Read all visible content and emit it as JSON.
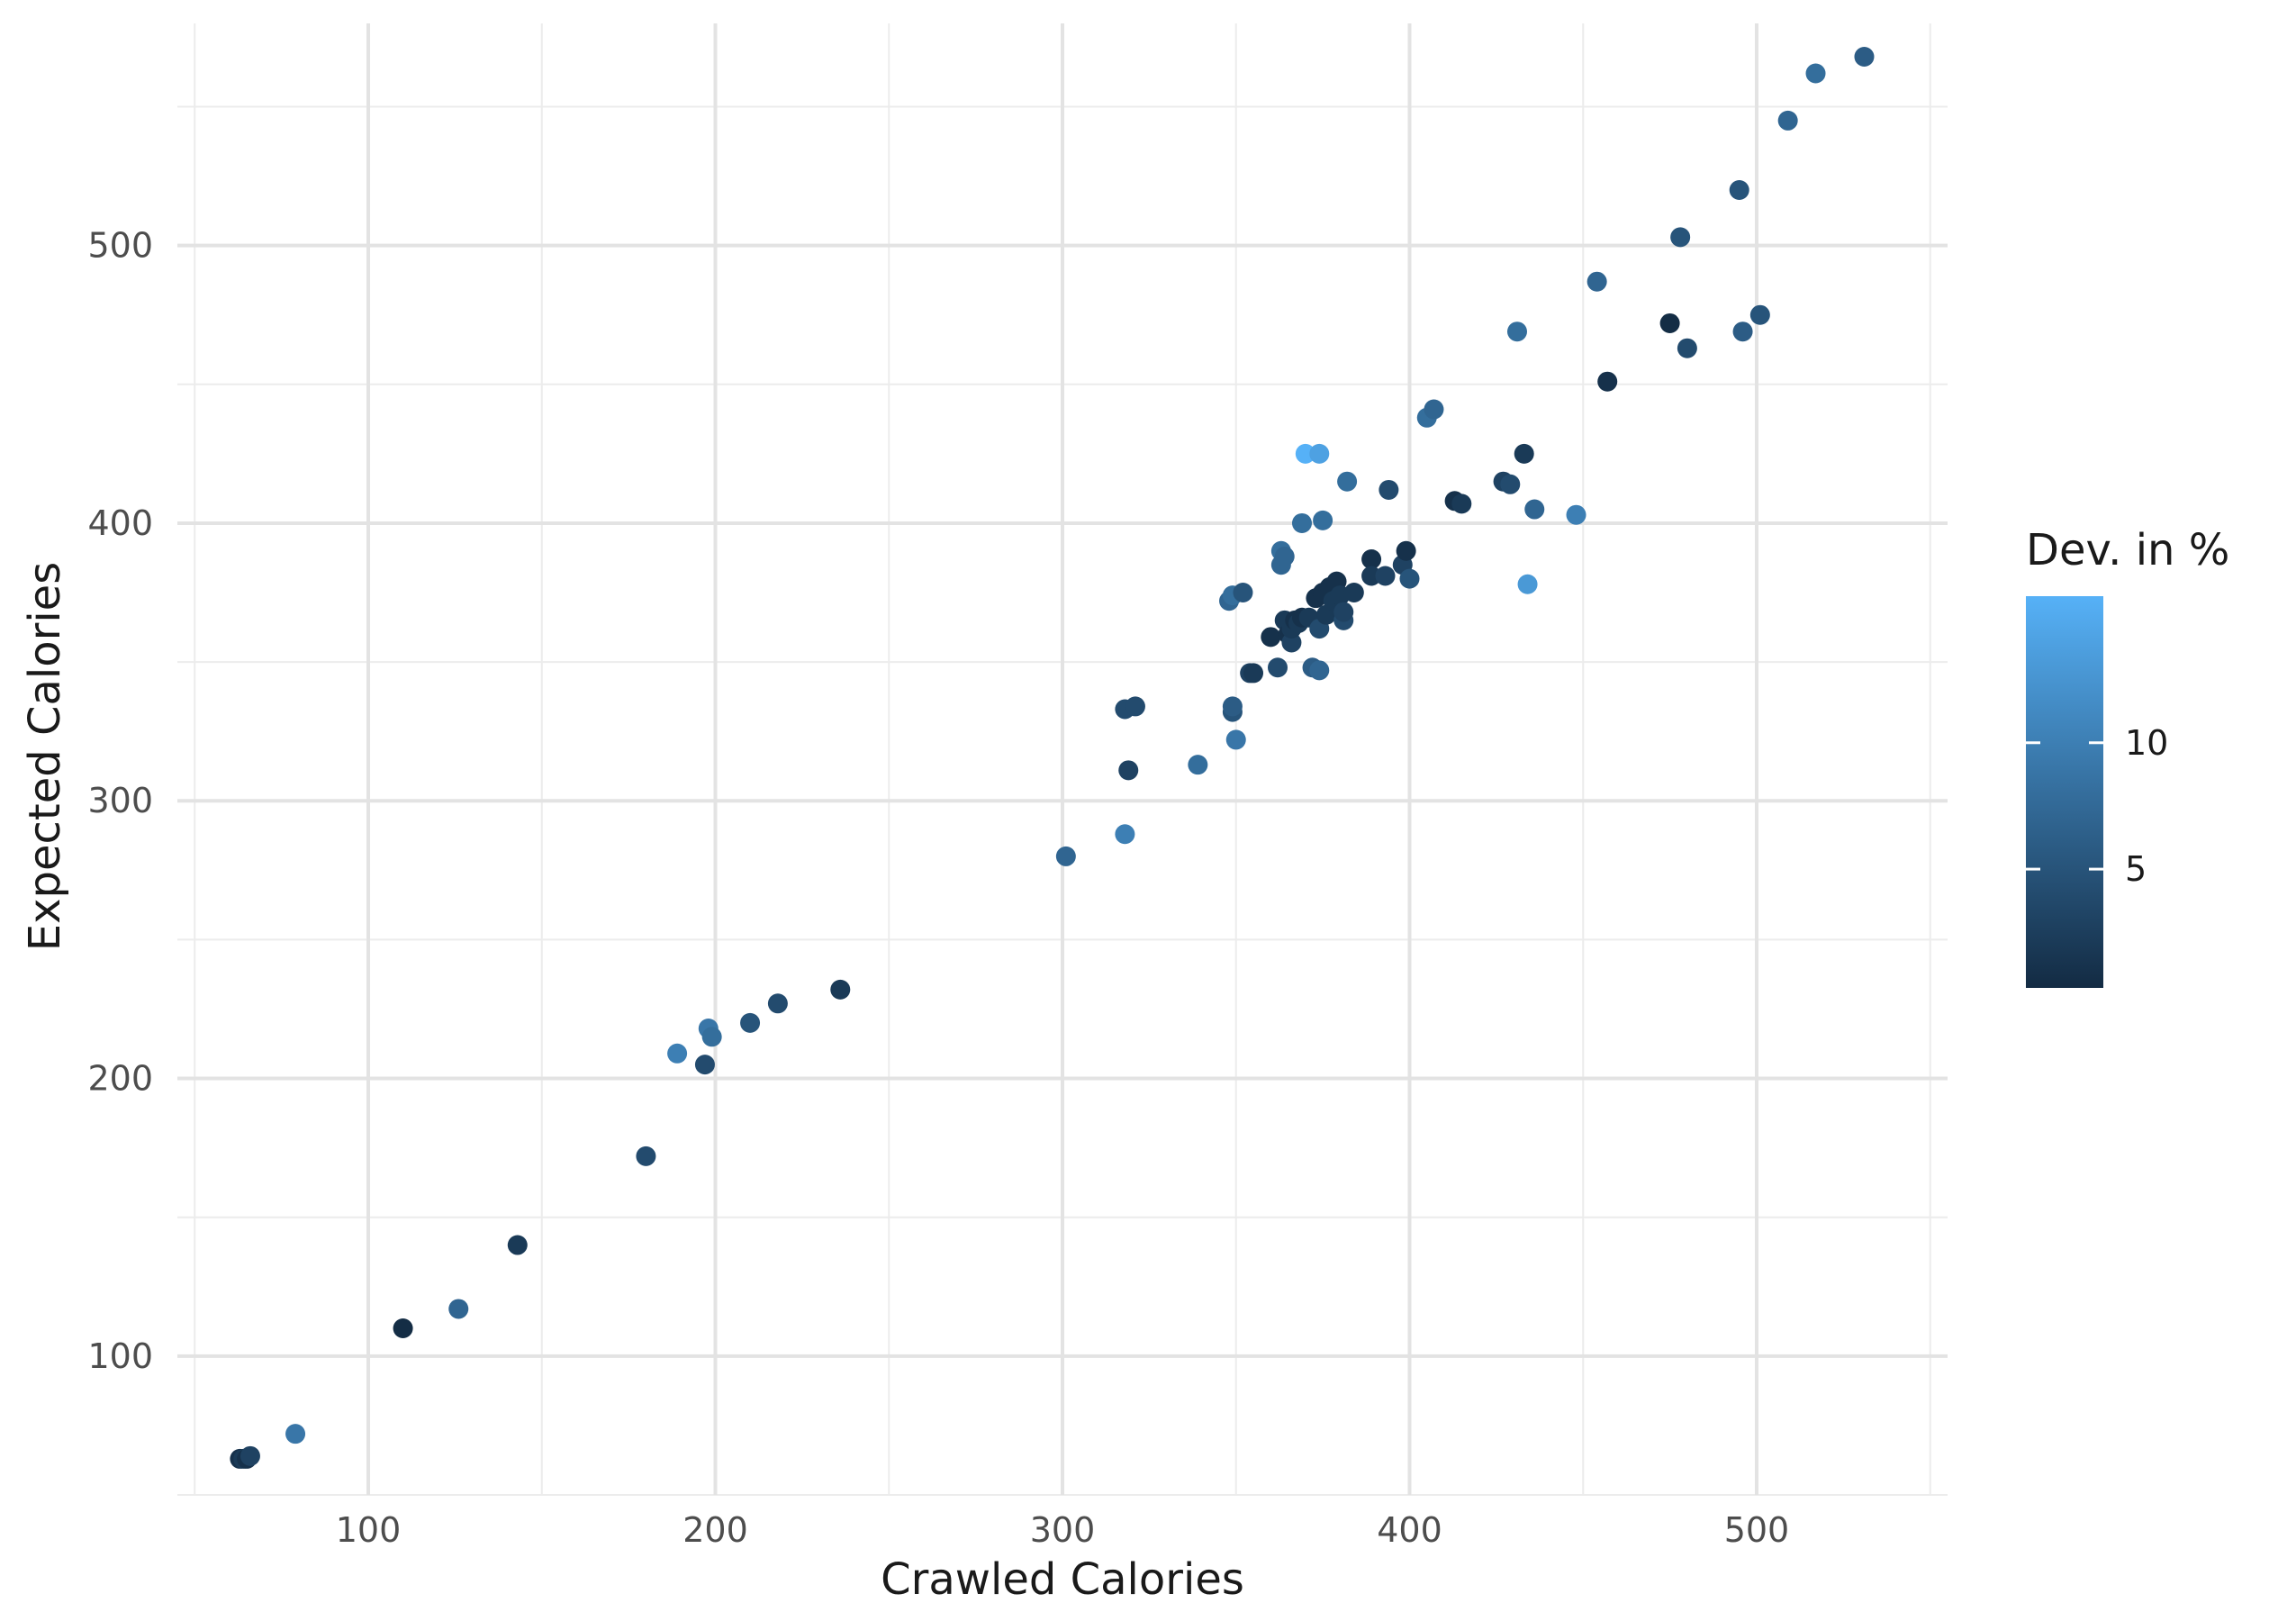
{
  "chart_data": {
    "type": "scatter",
    "title": "",
    "xlabel": "Crawled Calories",
    "ylabel": "Expected Calories",
    "xlim": [
      45,
      555
    ],
    "ylim": [
      50,
      580
    ],
    "x_ticks": [
      100,
      200,
      300,
      400,
      500
    ],
    "y_ticks": [
      100,
      200,
      300,
      400,
      500
    ],
    "grid": true,
    "legend": {
      "title": "Dev. in %",
      "placement": "right",
      "type": "colorbar",
      "min": 0.3,
      "max": 15.8,
      "ticks": [
        5,
        10
      ],
      "color_low": "#132B43",
      "color_high": "#56B1F7"
    },
    "points": [
      {
        "x": 63,
        "y": 63,
        "c": 1
      },
      {
        "x": 64,
        "y": 63,
        "c": 2
      },
      {
        "x": 65,
        "y": 63,
        "c": 1
      },
      {
        "x": 66,
        "y": 64,
        "c": 3
      },
      {
        "x": 79,
        "y": 72,
        "c": 9
      },
      {
        "x": 110,
        "y": 110,
        "c": 0.5
      },
      {
        "x": 126,
        "y": 117,
        "c": 7
      },
      {
        "x": 143,
        "y": 140,
        "c": 2
      },
      {
        "x": 180,
        "y": 172,
        "c": 4
      },
      {
        "x": 189,
        "y": 209,
        "c": 10
      },
      {
        "x": 197,
        "y": 205,
        "c": 4
      },
      {
        "x": 198,
        "y": 218,
        "c": 9
      },
      {
        "x": 199,
        "y": 215,
        "c": 8
      },
      {
        "x": 210,
        "y": 220,
        "c": 5
      },
      {
        "x": 218,
        "y": 227,
        "c": 4
      },
      {
        "x": 236,
        "y": 232,
        "c": 2
      },
      {
        "x": 301,
        "y": 280,
        "c": 7
      },
      {
        "x": 318,
        "y": 288,
        "c": 10
      },
      {
        "x": 318,
        "y": 333,
        "c": 4
      },
      {
        "x": 319,
        "y": 311,
        "c": 3
      },
      {
        "x": 321,
        "y": 334,
        "c": 4
      },
      {
        "x": 339,
        "y": 313,
        "c": 8
      },
      {
        "x": 348,
        "y": 372,
        "c": 7
      },
      {
        "x": 349,
        "y": 374,
        "c": 8
      },
      {
        "x": 349,
        "y": 332,
        "c": 5
      },
      {
        "x": 349,
        "y": 334,
        "c": 6
      },
      {
        "x": 350,
        "y": 322,
        "c": 9
      },
      {
        "x": 352,
        "y": 375,
        "c": 5
      },
      {
        "x": 354,
        "y": 346,
        "c": 3
      },
      {
        "x": 355,
        "y": 346,
        "c": 2
      },
      {
        "x": 360,
        "y": 359,
        "c": 1
      },
      {
        "x": 362,
        "y": 348,
        "c": 4
      },
      {
        "x": 363,
        "y": 385,
        "c": 7
      },
      {
        "x": 363,
        "y": 390,
        "c": 8
      },
      {
        "x": 364,
        "y": 388,
        "c": 7
      },
      {
        "x": 364,
        "y": 365,
        "c": 2
      },
      {
        "x": 365,
        "y": 360,
        "c": 1
      },
      {
        "x": 366,
        "y": 357,
        "c": 3
      },
      {
        "x": 366,
        "y": 362,
        "c": 2
      },
      {
        "x": 367,
        "y": 365,
        "c": 1
      },
      {
        "x": 368,
        "y": 364,
        "c": 2
      },
      {
        "x": 369,
        "y": 400,
        "c": 8
      },
      {
        "x": 369,
        "y": 366,
        "c": 1
      },
      {
        "x": 370,
        "y": 425,
        "c": 15.8
      },
      {
        "x": 371,
        "y": 366,
        "c": 2
      },
      {
        "x": 372,
        "y": 348,
        "c": 6
      },
      {
        "x": 373,
        "y": 373,
        "c": 1
      },
      {
        "x": 374,
        "y": 347,
        "c": 7
      },
      {
        "x": 374,
        "y": 362,
        "c": 4
      },
      {
        "x": 374,
        "y": 425,
        "c": 14
      },
      {
        "x": 375,
        "y": 401,
        "c": 8
      },
      {
        "x": 375,
        "y": 375,
        "c": 1
      },
      {
        "x": 376,
        "y": 367,
        "c": 2
      },
      {
        "x": 377,
        "y": 377,
        "c": 1
      },
      {
        "x": 378,
        "y": 372,
        "c": 2
      },
      {
        "x": 379,
        "y": 379,
        "c": 1
      },
      {
        "x": 380,
        "y": 374,
        "c": 2
      },
      {
        "x": 381,
        "y": 365,
        "c": 4
      },
      {
        "x": 381,
        "y": 368,
        "c": 3
      },
      {
        "x": 382,
        "y": 415,
        "c": 8
      },
      {
        "x": 384,
        "y": 375,
        "c": 2
      },
      {
        "x": 389,
        "y": 387,
        "c": 1
      },
      {
        "x": 389,
        "y": 381,
        "c": 2
      },
      {
        "x": 393,
        "y": 381,
        "c": 3
      },
      {
        "x": 394,
        "y": 412,
        "c": 4
      },
      {
        "x": 398,
        "y": 385,
        "c": 3
      },
      {
        "x": 399,
        "y": 390,
        "c": 1
      },
      {
        "x": 400,
        "y": 380,
        "c": 5
      },
      {
        "x": 405,
        "y": 438,
        "c": 8
      },
      {
        "x": 407,
        "y": 441,
        "c": 7
      },
      {
        "x": 413,
        "y": 408,
        "c": 1
      },
      {
        "x": 415,
        "y": 407,
        "c": 2
      },
      {
        "x": 427,
        "y": 415,
        "c": 3
      },
      {
        "x": 429,
        "y": 414,
        "c": 4
      },
      {
        "x": 431,
        "y": 469,
        "c": 8
      },
      {
        "x": 433,
        "y": 425,
        "c": 2
      },
      {
        "x": 434,
        "y": 378,
        "c": 13
      },
      {
        "x": 436,
        "y": 405,
        "c": 7
      },
      {
        "x": 448,
        "y": 403,
        "c": 10
      },
      {
        "x": 454,
        "y": 487,
        "c": 7
      },
      {
        "x": 457,
        "y": 451,
        "c": 1
      },
      {
        "x": 475,
        "y": 472,
        "c": 0.5
      },
      {
        "x": 478,
        "y": 503,
        "c": 5
      },
      {
        "x": 480,
        "y": 463,
        "c": 4
      },
      {
        "x": 495,
        "y": 520,
        "c": 5
      },
      {
        "x": 496,
        "y": 469,
        "c": 6
      },
      {
        "x": 501,
        "y": 475,
        "c": 5
      },
      {
        "x": 509,
        "y": 545,
        "c": 7
      },
      {
        "x": 517,
        "y": 562,
        "c": 8
      },
      {
        "x": 531,
        "y": 568,
        "c": 6
      }
    ]
  }
}
